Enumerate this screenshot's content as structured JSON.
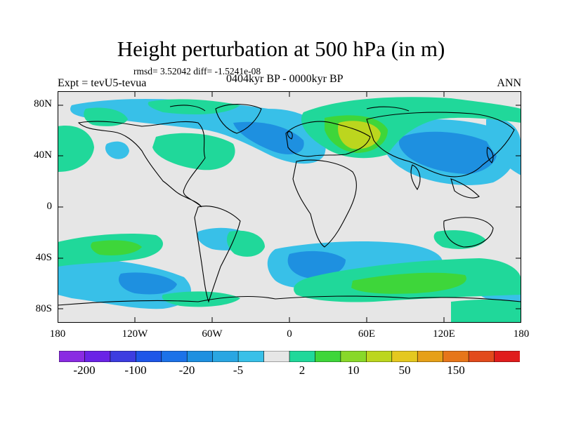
{
  "title": "Height perturbation at 500 hPa (in m)",
  "stats": {
    "text": "rmsd= 3.52042 diff= -1.5241e-08"
  },
  "expt_label": "Expt = tevU5-tevua",
  "period_label": "0404kyr BP - 0000kyr BP",
  "season_label": "ANN",
  "y_axis": {
    "ticks": [
      "80N",
      "40N",
      "0",
      "40S",
      "80S"
    ]
  },
  "x_axis": {
    "ticks": [
      "180",
      "120W",
      "60W",
      "0",
      "60E",
      "120E",
      "180"
    ]
  },
  "colorbar": {
    "colors": [
      "#8a2be2",
      "#6a23e6",
      "#3d3de0",
      "#1e56e8",
      "#1c72e8",
      "#1e90e0",
      "#2aa6e2",
      "#38c0e8",
      "#e6e6e6",
      "#20d89a",
      "#3ed63a",
      "#88d82a",
      "#bcd61e",
      "#e4c820",
      "#e6a018",
      "#e6761a",
      "#e24a1c",
      "#e01c1c"
    ],
    "labels": [
      "-200",
      "-100",
      "-20",
      "-5",
      "2",
      "10",
      "50",
      "150"
    ]
  },
  "colors": {
    "background": "#e6e6e6",
    "neg_light": "#38c0e8",
    "neg_mid": "#1e90e0",
    "pos_light": "#20d89a",
    "pos_mid": "#3ed63a",
    "pos_strong": "#bcd61e"
  }
}
